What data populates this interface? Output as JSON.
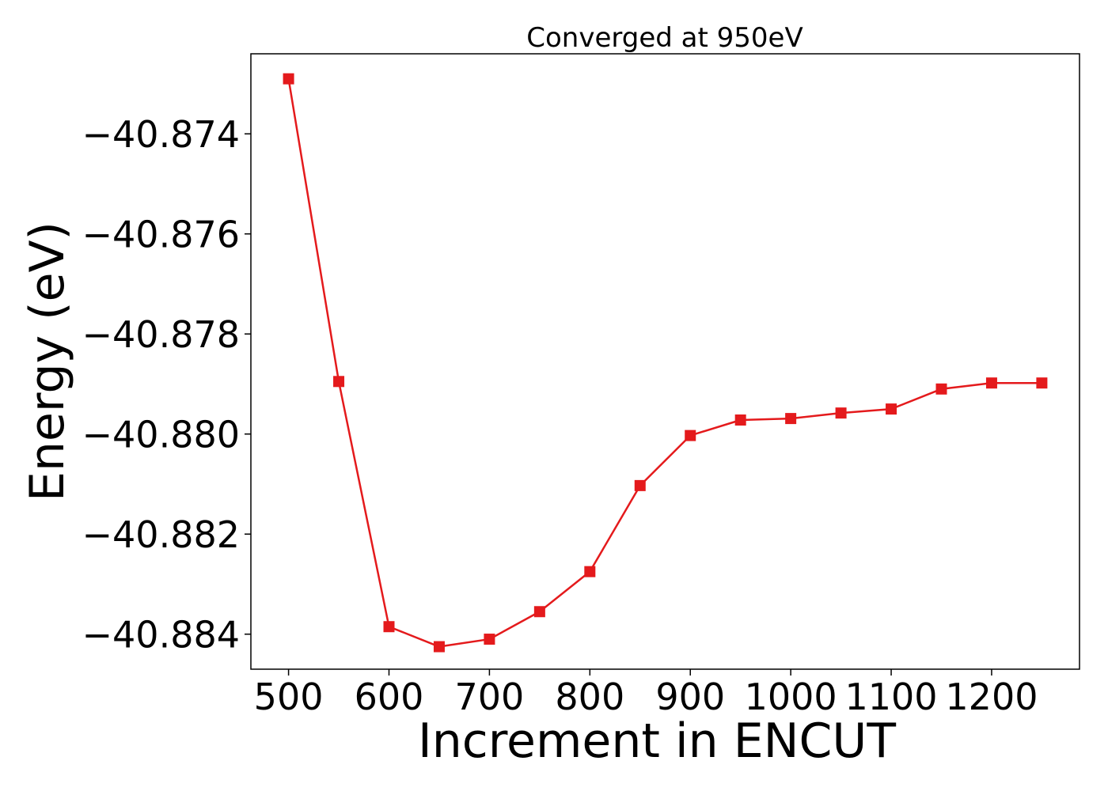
{
  "chart_data": {
    "type": "line",
    "title": "Converged at 950eV",
    "xlabel": "Increment in ENCUT",
    "ylabel": "Energy (eV)",
    "x": [
      500,
      550,
      600,
      650,
      700,
      750,
      800,
      850,
      900,
      950,
      1000,
      1050,
      1100,
      1150,
      1200,
      1250
    ],
    "series": [
      {
        "values": [
          -40.8729,
          -40.87895,
          -40.88385,
          -40.88425,
          -40.8841,
          -40.88355,
          -40.88275,
          -40.88103,
          -40.88003,
          -40.87972,
          -40.87969,
          -40.87958,
          -40.8795,
          -40.8791,
          -40.87898,
          -40.87898
        ],
        "color": "#e41a1c",
        "marker": "square"
      }
    ],
    "xlim": [
      462.5,
      1287.5
    ],
    "ylim": [
      -40.8847,
      -40.8724
    ],
    "xticks": [
      500,
      600,
      700,
      800,
      900,
      1000,
      1100,
      1200
    ],
    "xtick_labels": [
      "500",
      "600",
      "700",
      "800",
      "900",
      "1000",
      "1100",
      "1200"
    ],
    "yticks": [
      -40.874,
      -40.876,
      -40.878,
      -40.88,
      -40.882,
      -40.884
    ],
    "ytick_labels": [
      "−40.874",
      "−40.876",
      "−40.878",
      "−40.880",
      "−40.882",
      "−40.884"
    ],
    "grid": false,
    "legend": false
  }
}
